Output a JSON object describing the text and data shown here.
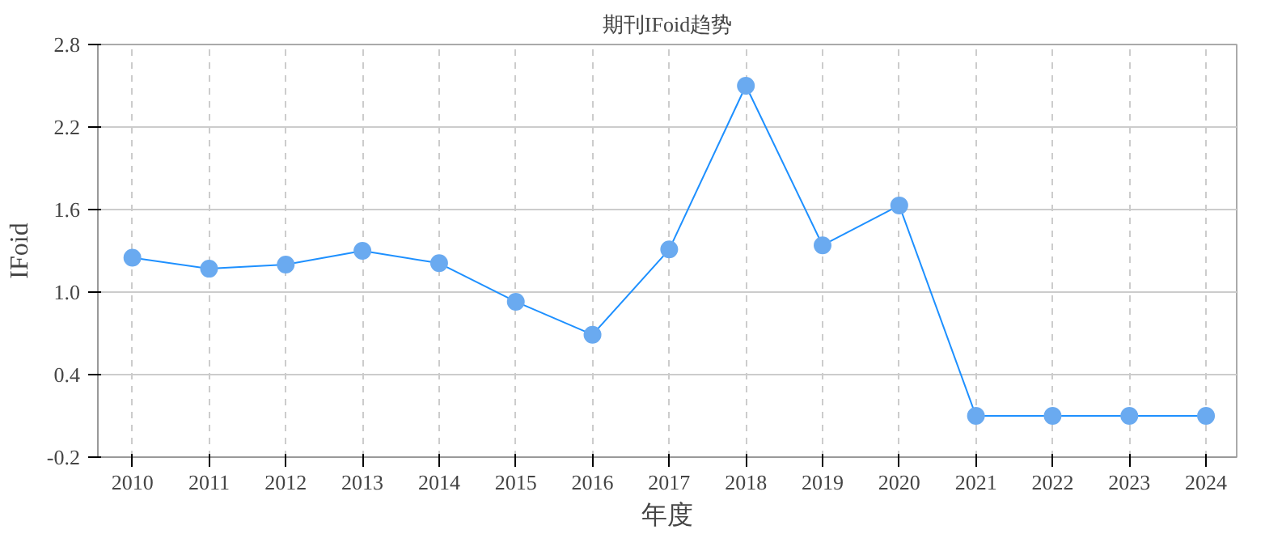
{
  "chart_data": {
    "type": "line",
    "title": "期刊IFoid趋势",
    "xlabel": "年度",
    "ylabel": "IFoid",
    "categories": [
      "2010",
      "2011",
      "2012",
      "2013",
      "2014",
      "2015",
      "2016",
      "2017",
      "2018",
      "2019",
      "2020",
      "2021",
      "2022",
      "2023",
      "2024"
    ],
    "series": [
      {
        "color": "#1e90ff",
        "values": [
          1.25,
          1.17,
          1.2,
          1.3,
          1.21,
          0.93,
          0.69,
          1.31,
          2.5,
          1.34,
          1.63,
          0.1,
          0.1,
          0.1,
          0.1
        ]
      }
    ],
    "ylim": [
      -0.2,
      2.8
    ],
    "yticks": [
      -0.2,
      0.4,
      {
        "value": 1,
        "label": "1.0"
      },
      1.6,
      2.2,
      2.8
    ],
    "grid": true,
    "marker": "circle",
    "line_style": "solid"
  }
}
